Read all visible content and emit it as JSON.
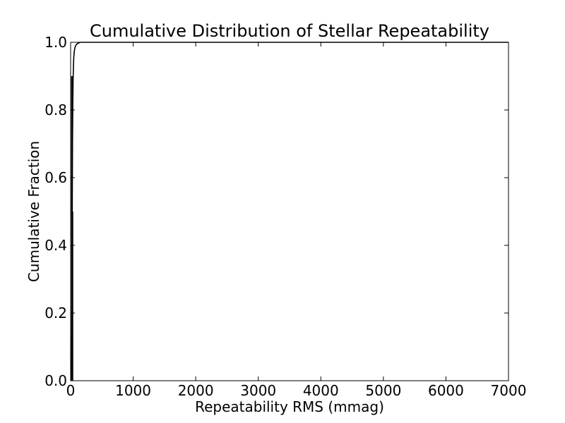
{
  "chart_data": {
    "type": "line",
    "title": "Cumulative Distribution of Stellar Repeatability",
    "xlabel": "Repeatability RMS (mmag)",
    "ylabel": "Cumulative Fraction",
    "xlim": [
      0,
      7000
    ],
    "ylim": [
      0.0,
      1.0
    ],
    "x_ticks": [
      0,
      1000,
      2000,
      3000,
      4000,
      5000,
      6000,
      7000
    ],
    "x_tick_labels": [
      "0",
      "1000",
      "2000",
      "3000",
      "4000",
      "5000",
      "6000",
      "7000"
    ],
    "y_ticks": [
      0.0,
      0.2,
      0.4,
      0.6,
      0.8,
      1.0
    ],
    "y_tick_labels": [
      "0.0",
      "0.2",
      "0.4",
      "0.6",
      "0.8",
      "1.0"
    ],
    "grid": false,
    "legend": "none",
    "series": [
      {
        "x": [
          10,
          15,
          20,
          25,
          30,
          35,
          40,
          45,
          50,
          60,
          70,
          80,
          100,
          150,
          7000
        ],
        "y": [
          0.0,
          0.05,
          0.2,
          0.5,
          0.7,
          0.82,
          0.89,
          0.93,
          0.955,
          0.975,
          0.985,
          0.99,
          0.995,
          1.0,
          1.0
        ]
      }
    ],
    "markers": [
      {
        "x": 15,
        "y_from": 0.0,
        "y_to": 0.9
      },
      {
        "x": 28,
        "y_from": 0.0,
        "y_to": 0.9
      },
      {
        "x": 20,
        "y_from": 0.0,
        "y_to": 0.5
      },
      {
        "x": 35,
        "y_from": 0.0,
        "y_to": 0.5
      }
    ]
  }
}
